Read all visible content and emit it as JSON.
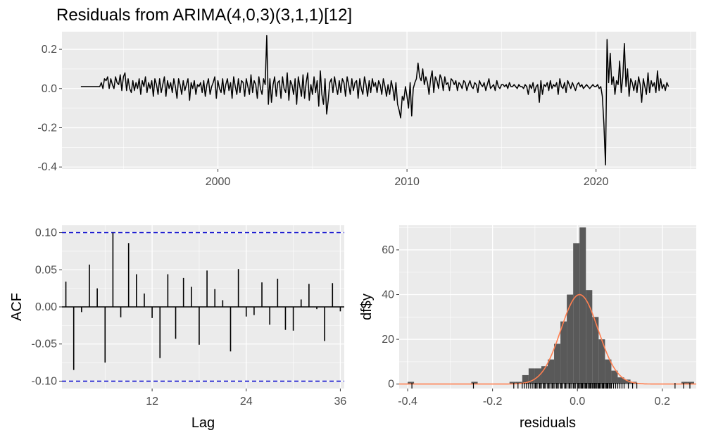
{
  "title": "Residuals from ARIMA(4,0,3)(3,1,1)[12]",
  "colors": {
    "panel_bg": "#ebebeb",
    "grid": "#ffffff",
    "line": "#000000",
    "bound": "#0000cc",
    "hist_fill": "#595959",
    "density": "#ff7f50",
    "tick_text": "#4d4d4d"
  },
  "chart_data": [
    {
      "type": "line",
      "name": "residuals-time-series",
      "x_start": 1992.75,
      "x_end": 2023.917,
      "x_step": 0.08333,
      "xlim": [
        1991.75,
        2025.3
      ],
      "ylim": [
        -0.41,
        0.29
      ],
      "xticks": [
        2000,
        2010,
        2020
      ],
      "yticks": [
        0.2,
        0.0,
        -0.2,
        -0.4
      ],
      "ytick_labels": [
        "0.2",
        "0.0",
        "-0.2",
        "-0.4"
      ],
      "grid": true,
      "y": [
        0.01,
        0.01,
        0.01,
        0.01,
        0.01,
        0.01,
        0.01,
        0.01,
        0.01,
        0.01,
        0.01,
        0.01,
        0.01,
        0.03,
        0.0,
        0.05,
        0.04,
        0.06,
        0.0,
        0.05,
        0.02,
        0.0,
        0.06,
        0.03,
        0.02,
        0.07,
        -0.01,
        0.06,
        0.08,
        -0.01,
        0.05,
        0.0,
        -0.02,
        0.04,
        -0.01,
        0.03,
        0.0,
        0.05,
        -0.03,
        0.04,
        0.01,
        0.06,
        -0.02,
        0.03,
        0.0,
        0.04,
        -0.04,
        0.05,
        0.02,
        -0.03,
        0.05,
        -0.02,
        0.02,
        0.06,
        -0.04,
        0.04,
        0.0,
        0.03,
        -0.02,
        0.05,
        0.01,
        -0.05,
        0.05,
        0.02,
        -0.03,
        0.04,
        -0.01,
        0.02,
        0.05,
        -0.06,
        0.03,
        0.0,
        0.04,
        -0.03,
        0.02,
        0.01,
        0.03,
        -0.02,
        0.04,
        -0.04,
        0.02,
        0.05,
        -0.03,
        0.01,
        0.03,
        0.06,
        -0.05,
        0.04,
        0.0,
        -0.02,
        0.05,
        -0.03,
        0.02,
        0.05,
        -0.01,
        0.03,
        -0.05,
        0.06,
        0.01,
        -0.03,
        0.05,
        -0.02,
        0.04,
        0.03,
        -0.04,
        0.05,
        0.01,
        -0.03,
        0.07,
        -0.02,
        0.04,
        0.02,
        -0.05,
        0.06,
        0.0,
        -0.03,
        0.05,
        0.02,
        0.27,
        -0.08,
        0.05,
        -0.07,
        0.02,
        0.06,
        -0.04,
        0.03,
        0.04,
        -0.05,
        0.06,
        0.0,
        -0.02,
        0.08,
        -0.06,
        0.04,
        0.02,
        -0.03,
        0.05,
        -0.08,
        0.06,
        0.01,
        -0.04,
        0.07,
        -0.05,
        0.03,
        0.08,
        -0.06,
        0.02,
        -0.03,
        0.06,
        -0.02,
        0.04,
        -0.09,
        0.09,
        -0.03,
        -0.08,
        0.05,
        -0.13,
        -0.06,
        0.03,
        0.05,
        -0.02,
        0.06,
        0.01,
        -0.03,
        0.04,
        -0.02,
        0.05,
        0.03,
        -0.04,
        0.06,
        0.02,
        -0.03,
        0.05,
        -0.01,
        0.03,
        0.04,
        -0.05,
        0.05,
        0.0,
        -0.03,
        0.06,
        0.02,
        -0.04,
        0.04,
        -0.02,
        0.05,
        0.01,
        0.03,
        -0.02,
        0.04,
        0.02,
        -0.03,
        0.05,
        0.01,
        -0.04,
        0.02,
        -0.03,
        0.04,
        0.0,
        -0.06,
        0.03,
        -0.08,
        -0.11,
        -0.15,
        -0.04,
        -0.06,
        0.01,
        -0.04,
        -0.1,
        0.03,
        -0.14,
        0.0,
        0.03,
        0.05,
        0.13,
        0.06,
        0.04,
        0.1,
        0.02,
        0.06,
        0.03,
        -0.03,
        0.05,
        0.09,
        -0.02,
        0.06,
        0.04,
        0.0,
        0.07,
        0.05,
        -0.01,
        0.06,
        0.02,
        0.03,
        -0.01,
        0.05,
        0.04,
        0.02,
        0.04,
        -0.01,
        0.03,
        0.02,
        0.0,
        0.04,
        0.03,
        -0.01,
        0.02,
        0.04,
        0.01,
        0.0,
        0.03,
        0.02,
        -0.02,
        0.04,
        0.02,
        0.01,
        0.03,
        -0.01,
        0.02,
        0.05,
        0.0,
        0.01,
        0.02,
        -0.01,
        0.04,
        0.01,
        0.0,
        0.02,
        0.02,
        0.01,
        0.02,
        0.0,
        0.03,
        0.01,
        0.01,
        0.02,
        0.01,
        0.0,
        0.02,
        0.01,
        0.01,
        0.0,
        0.02,
        0.01,
        -0.03,
        0.02,
        0.0,
        0.03,
        -0.02,
        0.01,
        0.02,
        -0.07,
        0.04,
        -0.03,
        0.02,
        0.01,
        0.03,
        -0.01,
        0.04,
        0.0,
        0.02,
        0.01,
        0.03,
        -0.03,
        0.05,
        0.01,
        0.0,
        0.03,
        -0.02,
        0.04,
        0.02,
        0.0,
        0.03,
        0.01,
        -0.01,
        0.02,
        0.03,
        0.01,
        0.02,
        0.0,
        0.01,
        0.02,
        0.01,
        0.0,
        0.01,
        0.02,
        0.01,
        0.01,
        0.02,
        0.0,
        0.01,
        -0.04,
        -0.18,
        -0.39,
        0.25,
        0.03,
        0.18,
        0.02,
        0.06,
        -0.03,
        0.04,
        0.02,
        0.14,
        -0.02,
        0.06,
        0.23,
        0.01,
        0.1,
        -0.04,
        0.05,
        0.03,
        -0.01,
        0.04,
        -0.02,
        0.06,
        0.02,
        -0.07,
        0.05,
        0.01,
        -0.03,
        0.08,
        -0.02,
        0.04,
        0.01,
        0.03,
        -0.02,
        0.09,
        -0.01,
        0.05,
        0.0,
        0.02,
        -0.01,
        0.03,
        0.01
      ]
    },
    {
      "type": "bar",
      "name": "acf",
      "xlabel": "Lag",
      "ylabel": "ACF",
      "xlim": [
        0.5,
        36.5
      ],
      "ylim": [
        -0.11,
        0.11
      ],
      "xticks": [
        12,
        24,
        36
      ],
      "yticks": [
        0.1,
        0.05,
        0.0,
        -0.05,
        -0.1
      ],
      "ytick_labels": [
        "0.10",
        "0.05",
        "0.00",
        "-0.05",
        "-0.10"
      ],
      "confidence_bound": 0.1,
      "lags": [
        1,
        2,
        3,
        4,
        5,
        6,
        7,
        8,
        9,
        10,
        11,
        12,
        13,
        14,
        15,
        16,
        17,
        18,
        19,
        20,
        21,
        22,
        23,
        24,
        25,
        26,
        27,
        28,
        29,
        30,
        31,
        32,
        33,
        34,
        35,
        36
      ],
      "values": [
        0.034,
        -0.085,
        -0.007,
        0.057,
        0.025,
        -0.075,
        0.1,
        -0.014,
        0.086,
        0.044,
        0.018,
        -0.015,
        -0.069,
        0.044,
        -0.043,
        0.039,
        0.027,
        -0.051,
        0.049,
        0.024,
        0.009,
        -0.06,
        0.051,
        -0.013,
        -0.011,
        0.033,
        -0.024,
        0.038,
        -0.031,
        -0.032,
        0.01,
        0.031,
        -0.003,
        -0.046,
        0.032,
        -0.006
      ]
    },
    {
      "type": "histogram",
      "name": "residual-distribution",
      "xlabel": "residuals",
      "ylabel": "df$y",
      "xlim": [
        -0.42,
        0.28
      ],
      "ylim": [
        -2,
        71
      ],
      "xticks": [
        -0.4,
        -0.2,
        0.0,
        0.2
      ],
      "xtick_labels": [
        "-0.4",
        "-0.2",
        "0.0",
        "0.2"
      ],
      "yticks": [
        0,
        20,
        40,
        60
      ],
      "ytick_labels": [
        "0",
        "20",
        "40",
        "60"
      ],
      "bins": [
        {
          "x0": -0.4,
          "x1": -0.385,
          "count": 1
        },
        {
          "x0": -0.25,
          "x1": -0.235,
          "count": 1
        },
        {
          "x0": -0.16,
          "x1": -0.145,
          "count": 1
        },
        {
          "x0": -0.145,
          "x1": -0.13,
          "count": 1
        },
        {
          "x0": -0.13,
          "x1": -0.115,
          "count": 4
        },
        {
          "x0": -0.115,
          "x1": -0.1,
          "count": 7
        },
        {
          "x0": -0.1,
          "x1": -0.085,
          "count": 7
        },
        {
          "x0": -0.085,
          "x1": -0.07,
          "count": 8
        },
        {
          "x0": -0.07,
          "x1": -0.055,
          "count": 11
        },
        {
          "x0": -0.055,
          "x1": -0.04,
          "count": 18
        },
        {
          "x0": -0.04,
          "x1": -0.025,
          "count": 28
        },
        {
          "x0": -0.025,
          "x1": -0.01,
          "count": 40
        },
        {
          "x0": -0.01,
          "x1": 0.005,
          "count": 63
        },
        {
          "x0": 0.005,
          "x1": 0.02,
          "count": 70
        },
        {
          "x0": 0.02,
          "x1": 0.035,
          "count": 42
        },
        {
          "x0": 0.035,
          "x1": 0.05,
          "count": 30
        },
        {
          "x0": 0.05,
          "x1": 0.065,
          "count": 20
        },
        {
          "x0": 0.065,
          "x1": 0.08,
          "count": 11
        },
        {
          "x0": 0.08,
          "x1": 0.095,
          "count": 6
        },
        {
          "x0": 0.095,
          "x1": 0.11,
          "count": 3
        },
        {
          "x0": 0.11,
          "x1": 0.125,
          "count": 2
        },
        {
          "x0": 0.125,
          "x1": 0.14,
          "count": 1
        },
        {
          "x0": 0.245,
          "x1": 0.26,
          "count": 1
        },
        {
          "x0": 0.26,
          "x1": 0.275,
          "count": 1
        }
      ],
      "density_curve": {
        "mean": 0.005,
        "sd": 0.044,
        "peak": 40
      },
      "rug": [
        -0.39,
        -0.245,
        -0.15,
        -0.14,
        -0.13,
        -0.125,
        -0.12,
        -0.115,
        -0.11,
        -0.105,
        -0.1,
        -0.098,
        -0.095,
        -0.09,
        -0.088,
        -0.085,
        -0.08,
        -0.078,
        -0.075,
        -0.07,
        -0.068,
        -0.065,
        -0.06,
        -0.058,
        -0.055,
        -0.05,
        -0.048,
        -0.045,
        -0.04,
        -0.038,
        -0.035,
        -0.03,
        -0.028,
        -0.025,
        -0.02,
        -0.018,
        -0.015,
        -0.01,
        -0.008,
        -0.005,
        0.0,
        0.002,
        0.005,
        0.008,
        0.01,
        0.012,
        0.015,
        0.018,
        0.02,
        0.022,
        0.025,
        0.028,
        0.03,
        0.032,
        0.035,
        0.038,
        0.04,
        0.042,
        0.045,
        0.048,
        0.05,
        0.052,
        0.055,
        0.058,
        0.06,
        0.062,
        0.065,
        0.068,
        0.07,
        0.072,
        0.075,
        0.078,
        0.08,
        0.085,
        0.09,
        0.095,
        0.1,
        0.105,
        0.11,
        0.12,
        0.13,
        0.14,
        0.23,
        0.25,
        0.265
      ]
    }
  ]
}
